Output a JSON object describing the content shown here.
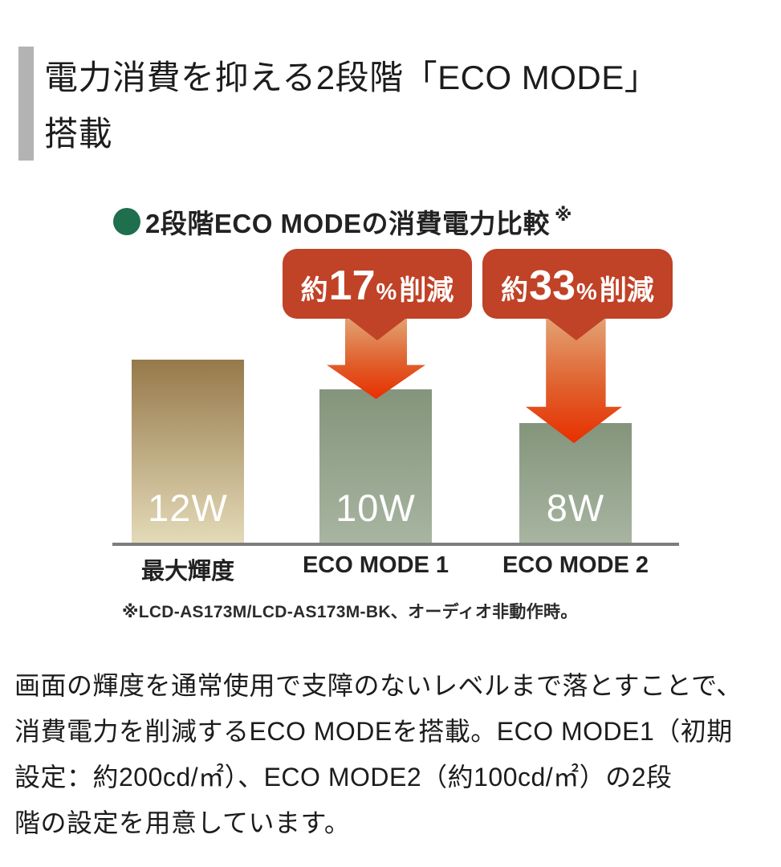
{
  "page": {
    "background": "#ffffff"
  },
  "heading": {
    "line1": "電力消費を抑える2段階「ECO MODE」",
    "line2": "搭載",
    "accent_bar_color": "#b3b3b3"
  },
  "figure": {
    "title": "2段階ECO MODEの消費電力比較",
    "title_note": "※",
    "bullet_color": "#1f6f4f",
    "callout_bg": "#c04227",
    "callouts": [
      {
        "prefix": "約",
        "value": "17",
        "percent": "%",
        "suffix": "削減"
      },
      {
        "prefix": "約",
        "value": "33",
        "percent": "%",
        "suffix": "削減"
      }
    ],
    "bars": [
      {
        "value_label": "12W",
        "category": "最大輝度"
      },
      {
        "value_label": "10W",
        "category": "ECO MODE 1"
      },
      {
        "value_label": "8W",
        "category": "ECO MODE 2"
      }
    ],
    "footnote": "※LCD-AS173M/LCD-AS173M-BK、オーディオ非動作時。",
    "colors": {
      "bar1_top": "#96794a",
      "bar1_bottom": "#e4dbb9",
      "bar23_top": "#84957c",
      "bar23_bottom": "#a8b5a1",
      "arrow_top": "#e3a273",
      "arrow_bottom": "#e82f00",
      "baseline": "#7d7d7d"
    }
  },
  "chart_data": {
    "type": "bar",
    "title": "2段階ECO MODEの消費電力比較",
    "categories": [
      "最大輝度",
      "ECO MODE 1",
      "ECO MODE 2"
    ],
    "values": [
      12,
      10,
      8
    ],
    "unit": "W",
    "bar_labels": [
      "12W",
      "10W",
      "8W"
    ],
    "annotations": [
      {
        "target": "ECO MODE 1",
        "text": "約17%削減"
      },
      {
        "target": "ECO MODE 2",
        "text": "約33%削減"
      }
    ],
    "footnote": "※LCD-AS173M/LCD-AS173M-BK、オーディオ非動作時。",
    "ylim": [
      0,
      12
    ],
    "grid": false,
    "legend": false
  },
  "body": {
    "lines": [
      "画面の輝度を通常使用で支障のないレベルまで落とすことで、",
      "消費電力を削減するECO MODEを搭載。ECO MODE1（初期",
      "設定：約200cd/㎡）、ECO MODE2（約100cd/㎡）の2段",
      "階の設定を用意しています。"
    ]
  }
}
